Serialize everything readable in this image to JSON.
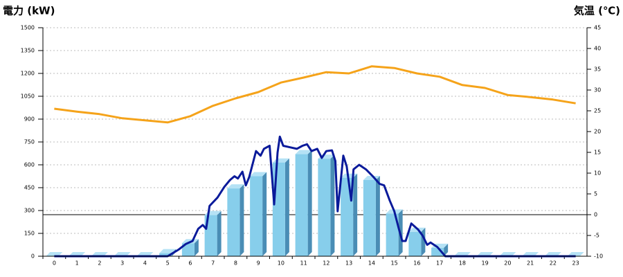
{
  "chart_data": {
    "type": "combo",
    "y_label": "電力 (kW)",
    "y_label_color": "#1a73b8",
    "y2_label": "気温 (℃)",
    "y2_label_color": "#f0901e",
    "categories": [
      "0",
      "1",
      "2",
      "3",
      "4",
      "5",
      "6",
      "7",
      "8",
      "9",
      "10",
      "11",
      "12",
      "13",
      "14",
      "15",
      "16",
      "17",
      "18",
      "19",
      "20",
      "21",
      "22",
      "23"
    ],
    "ylim": [
      0,
      1500
    ],
    "yticks": [
      0,
      150,
      300,
      450,
      600,
      750,
      900,
      1050,
      1200,
      1350,
      1500
    ],
    "y2lim": [
      -10,
      45
    ],
    "y2ticks": [
      -10,
      -5,
      0,
      5,
      10,
      15,
      20,
      25,
      30,
      35,
      40,
      45
    ],
    "grid": true,
    "y2_zero_line": true,
    "series": [
      {
        "type": "bar",
        "color": "#87ceeb",
        "values": [
          0,
          0,
          0,
          0,
          0,
          20,
          85,
          270,
          445,
          525,
          615,
          670,
          640,
          515,
          500,
          280,
          160,
          55,
          0,
          0,
          0,
          0,
          0,
          0
        ]
      },
      {
        "type": "line",
        "color": "#0a1a9a",
        "x": [
          0,
          5,
          5.5,
          5.8,
          6.1,
          6.35,
          6.55,
          6.7,
          6.85,
          7.2,
          7.5,
          7.75,
          7.95,
          8.1,
          8.3,
          8.45,
          8.6,
          8.9,
          9.1,
          9.25,
          9.5,
          9.7,
          9.85,
          9.95,
          10.1,
          10.4,
          10.7,
          10.95,
          11.15,
          11.35,
          11.6,
          11.8,
          12,
          12.25,
          12.4,
          12.5,
          12.75,
          12.9,
          13.1,
          13.2,
          13.45,
          13.75,
          14.05,
          14.35,
          14.55,
          14.8,
          15,
          15.2,
          15.35,
          15.5,
          15.75,
          16.05,
          16.25,
          16.45,
          16.6,
          16.9,
          17.25,
          23
        ],
        "values": [
          0,
          0,
          45,
          80,
          100,
          180,
          205,
          180,
          330,
          385,
          455,
          500,
          525,
          510,
          555,
          465,
          520,
          690,
          660,
          705,
          725,
          340,
          680,
          785,
          725,
          715,
          705,
          725,
          735,
          690,
          705,
          645,
          690,
          695,
          625,
          295,
          660,
          590,
          365,
          570,
          600,
          570,
          525,
          475,
          465,
          365,
          295,
          180,
          100,
          100,
          215,
          175,
          135,
          75,
          90,
          60,
          0,
          0
        ]
      },
      {
        "type": "line",
        "axis": "y2",
        "color": "#f5a31a",
        "values": [
          25.5,
          24.8,
          24.2,
          23.2,
          22.7,
          22.2,
          23.7,
          26.2,
          28,
          29.5,
          31.8,
          33,
          34.3,
          34,
          35.7,
          35.3,
          34,
          33.2,
          31.2,
          30.5,
          28.8,
          28.3,
          27.7,
          26.8
        ]
      }
    ]
  }
}
